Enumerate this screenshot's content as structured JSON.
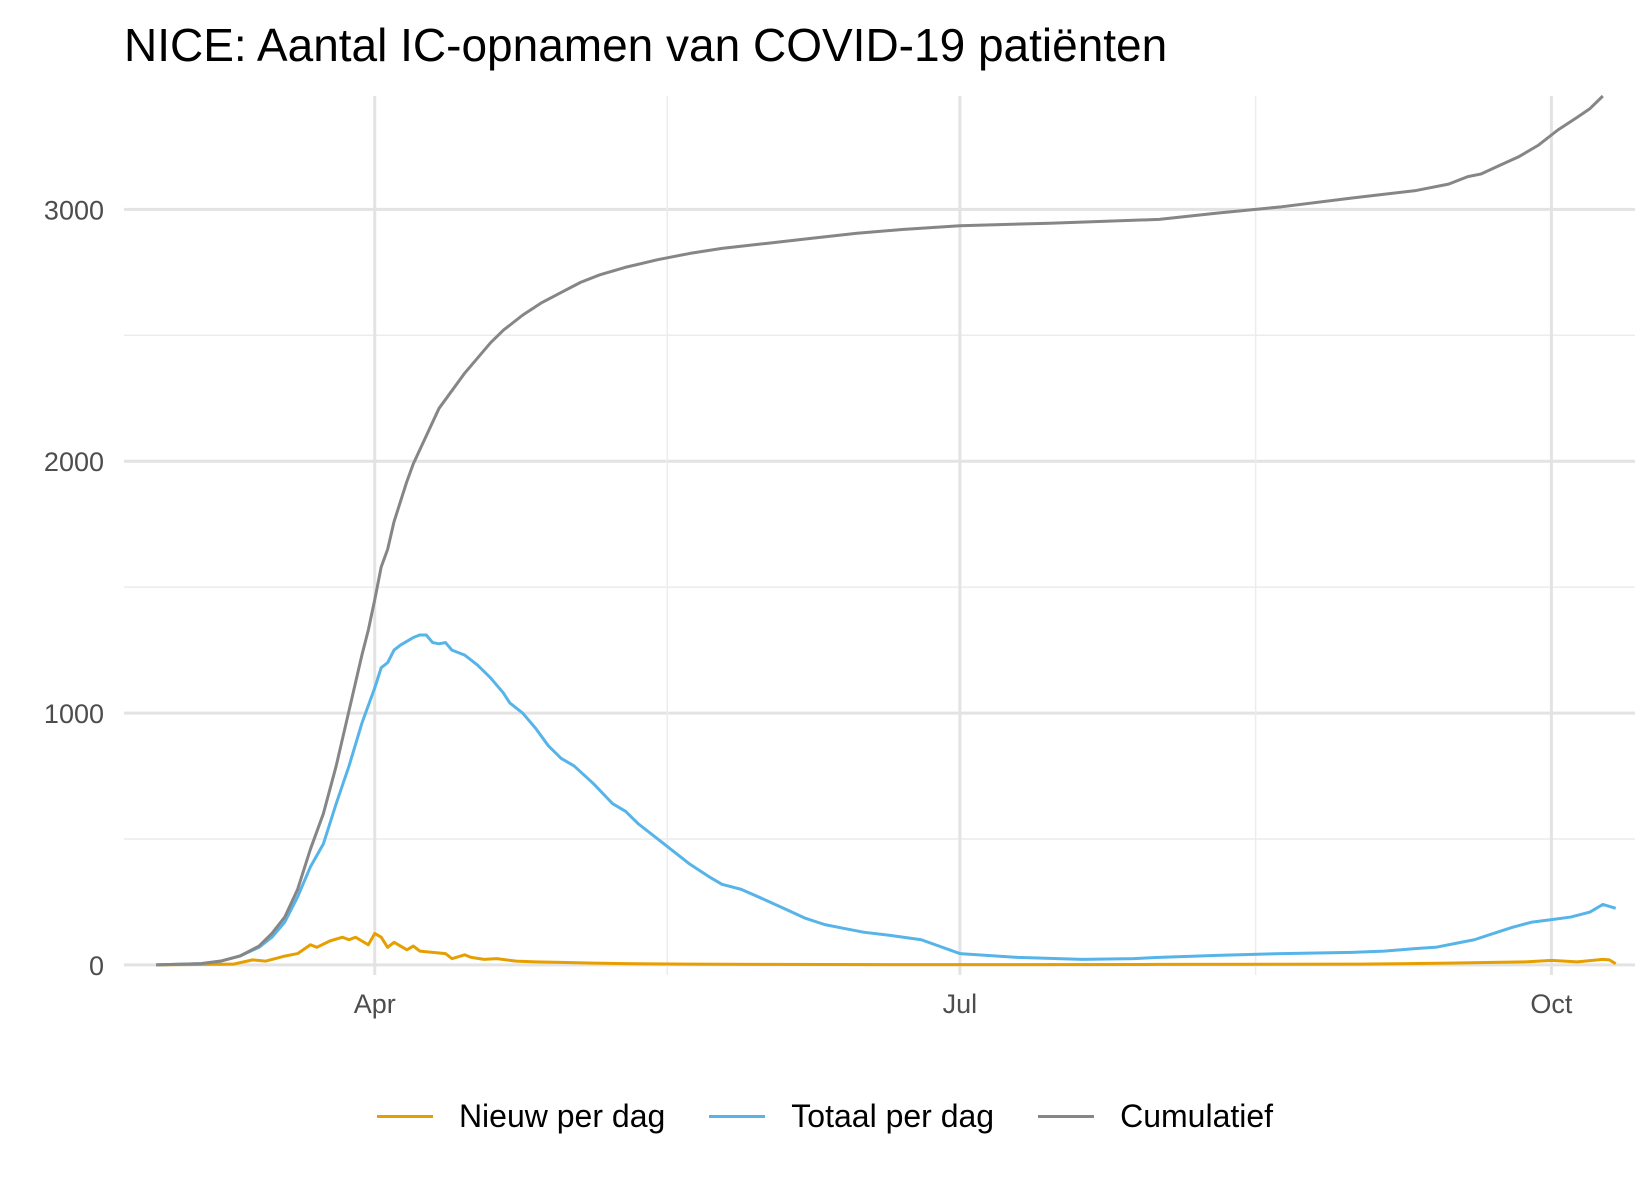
{
  "chart_data": {
    "type": "line",
    "title": "NICE: Aantal IC-opnamen van COVID-19 patiënten",
    "xlabel": "",
    "ylabel": "",
    "x_ticks": [
      "Apr",
      "Jul",
      "Oct"
    ],
    "x_tick_dates": [
      "2020-04-01",
      "2020-07-01",
      "2020-10-01"
    ],
    "x_range": [
      "2020-02-22",
      "2020-10-14"
    ],
    "y_ticks": [
      0,
      1000,
      2000,
      3000
    ],
    "ylim": [
      -40,
      3450
    ],
    "grid": true,
    "legend_position": "bottom",
    "series": [
      {
        "name": "Nieuw per dag",
        "color": "#E69F00",
        "points": [
          [
            "2020-02-27",
            0
          ],
          [
            "2020-03-10",
            3
          ],
          [
            "2020-03-13",
            20
          ],
          [
            "2020-03-15",
            15
          ],
          [
            "2020-03-18",
            35
          ],
          [
            "2020-03-20",
            45
          ],
          [
            "2020-03-22",
            80
          ],
          [
            "2020-03-23",
            70
          ],
          [
            "2020-03-25",
            95
          ],
          [
            "2020-03-27",
            110
          ],
          [
            "2020-03-28",
            100
          ],
          [
            "2020-03-29",
            110
          ],
          [
            "2020-03-30",
            95
          ],
          [
            "2020-03-31",
            80
          ],
          [
            "2020-04-01",
            125
          ],
          [
            "2020-04-02",
            110
          ],
          [
            "2020-04-03",
            70
          ],
          [
            "2020-04-04",
            90
          ],
          [
            "2020-04-05",
            75
          ],
          [
            "2020-04-06",
            60
          ],
          [
            "2020-04-07",
            75
          ],
          [
            "2020-04-08",
            55
          ],
          [
            "2020-04-10",
            50
          ],
          [
            "2020-04-12",
            45
          ],
          [
            "2020-04-13",
            25
          ],
          [
            "2020-04-15",
            40
          ],
          [
            "2020-04-16",
            30
          ],
          [
            "2020-04-18",
            22
          ],
          [
            "2020-04-20",
            25
          ],
          [
            "2020-04-23",
            15
          ],
          [
            "2020-04-26",
            12
          ],
          [
            "2020-04-30",
            10
          ],
          [
            "2020-05-05",
            7
          ],
          [
            "2020-05-10",
            5
          ],
          [
            "2020-05-20",
            3
          ],
          [
            "2020-06-01",
            2
          ],
          [
            "2020-07-01",
            1
          ],
          [
            "2020-08-01",
            2
          ],
          [
            "2020-09-01",
            3
          ],
          [
            "2020-09-15",
            7
          ],
          [
            "2020-09-22",
            10
          ],
          [
            "2020-09-27",
            12
          ],
          [
            "2020-10-01",
            18
          ],
          [
            "2020-10-05",
            12
          ],
          [
            "2020-10-09",
            22
          ],
          [
            "2020-10-10",
            20
          ],
          [
            "2020-10-11",
            5
          ]
        ]
      },
      {
        "name": "Totaal per dag",
        "color": "#56B4E9",
        "points": [
          [
            "2020-02-27",
            0
          ],
          [
            "2020-03-05",
            5
          ],
          [
            "2020-03-08",
            15
          ],
          [
            "2020-03-11",
            35
          ],
          [
            "2020-03-14",
            70
          ],
          [
            "2020-03-16",
            110
          ],
          [
            "2020-03-18",
            170
          ],
          [
            "2020-03-20",
            270
          ],
          [
            "2020-03-22",
            390
          ],
          [
            "2020-03-24",
            480
          ],
          [
            "2020-03-26",
            640
          ],
          [
            "2020-03-28",
            790
          ],
          [
            "2020-03-30",
            960
          ],
          [
            "2020-03-31",
            1030
          ],
          [
            "2020-04-01",
            1100
          ],
          [
            "2020-04-02",
            1180
          ],
          [
            "2020-04-03",
            1200
          ],
          [
            "2020-04-04",
            1250
          ],
          [
            "2020-04-05",
            1270
          ],
          [
            "2020-04-06",
            1285
          ],
          [
            "2020-04-07",
            1300
          ],
          [
            "2020-04-08",
            1310
          ],
          [
            "2020-04-09",
            1310
          ],
          [
            "2020-04-10",
            1280
          ],
          [
            "2020-04-11",
            1275
          ],
          [
            "2020-04-12",
            1280
          ],
          [
            "2020-04-13",
            1250
          ],
          [
            "2020-04-15",
            1230
          ],
          [
            "2020-04-17",
            1190
          ],
          [
            "2020-04-19",
            1140
          ],
          [
            "2020-04-21",
            1080
          ],
          [
            "2020-04-22",
            1040
          ],
          [
            "2020-04-24",
            1000
          ],
          [
            "2020-04-26",
            940
          ],
          [
            "2020-04-28",
            870
          ],
          [
            "2020-04-30",
            820
          ],
          [
            "2020-05-02",
            790
          ],
          [
            "2020-05-05",
            720
          ],
          [
            "2020-05-08",
            640
          ],
          [
            "2020-05-10",
            610
          ],
          [
            "2020-05-12",
            560
          ],
          [
            "2020-05-15",
            500
          ],
          [
            "2020-05-18",
            440
          ],
          [
            "2020-05-20",
            400
          ],
          [
            "2020-05-23",
            350
          ],
          [
            "2020-05-25",
            320
          ],
          [
            "2020-05-28",
            300
          ],
          [
            "2020-06-01",
            255
          ],
          [
            "2020-06-04",
            220
          ],
          [
            "2020-06-07",
            185
          ],
          [
            "2020-06-10",
            160
          ],
          [
            "2020-06-13",
            145
          ],
          [
            "2020-06-16",
            130
          ],
          [
            "2020-06-20",
            118
          ],
          [
            "2020-06-25",
            100
          ],
          [
            "2020-07-01",
            45
          ],
          [
            "2020-07-10",
            30
          ],
          [
            "2020-07-20",
            22
          ],
          [
            "2020-07-28",
            25
          ],
          [
            "2020-08-01",
            30
          ],
          [
            "2020-08-10",
            38
          ],
          [
            "2020-08-20",
            45
          ],
          [
            "2020-08-31",
            50
          ],
          [
            "2020-09-05",
            55
          ],
          [
            "2020-09-10",
            65
          ],
          [
            "2020-09-13",
            70
          ],
          [
            "2020-09-16",
            85
          ],
          [
            "2020-09-19",
            100
          ],
          [
            "2020-09-22",
            125
          ],
          [
            "2020-09-25",
            150
          ],
          [
            "2020-09-28",
            170
          ],
          [
            "2020-10-01",
            180
          ],
          [
            "2020-10-04",
            190
          ],
          [
            "2020-10-07",
            210
          ],
          [
            "2020-10-09",
            240
          ],
          [
            "2020-10-11",
            225
          ]
        ]
      },
      {
        "name": "Cumulatief",
        "color": "#868686",
        "points": [
          [
            "2020-02-27",
            0
          ],
          [
            "2020-03-05",
            5
          ],
          [
            "2020-03-08",
            15
          ],
          [
            "2020-03-11",
            35
          ],
          [
            "2020-03-14",
            75
          ],
          [
            "2020-03-16",
            125
          ],
          [
            "2020-03-18",
            190
          ],
          [
            "2020-03-20",
            300
          ],
          [
            "2020-03-22",
            460
          ],
          [
            "2020-03-24",
            600
          ],
          [
            "2020-03-26",
            790
          ],
          [
            "2020-03-28",
            1010
          ],
          [
            "2020-03-30",
            1230
          ],
          [
            "2020-03-31",
            1330
          ],
          [
            "2020-04-01",
            1450
          ],
          [
            "2020-04-02",
            1580
          ],
          [
            "2020-04-03",
            1650
          ],
          [
            "2020-04-04",
            1760
          ],
          [
            "2020-04-05",
            1840
          ],
          [
            "2020-04-06",
            1920
          ],
          [
            "2020-04-07",
            1990
          ],
          [
            "2020-04-09",
            2100
          ],
          [
            "2020-04-11",
            2210
          ],
          [
            "2020-04-13",
            2280
          ],
          [
            "2020-04-15",
            2350
          ],
          [
            "2020-04-17",
            2410
          ],
          [
            "2020-04-19",
            2470
          ],
          [
            "2020-04-21",
            2520
          ],
          [
            "2020-04-24",
            2580
          ],
          [
            "2020-04-27",
            2630
          ],
          [
            "2020-04-30",
            2670
          ],
          [
            "2020-05-03",
            2710
          ],
          [
            "2020-05-06",
            2740
          ],
          [
            "2020-05-10",
            2770
          ],
          [
            "2020-05-15",
            2800
          ],
          [
            "2020-05-20",
            2825
          ],
          [
            "2020-05-25",
            2845
          ],
          [
            "2020-06-01",
            2865
          ],
          [
            "2020-06-08",
            2885
          ],
          [
            "2020-06-15",
            2905
          ],
          [
            "2020-06-22",
            2920
          ],
          [
            "2020-07-01",
            2935
          ],
          [
            "2020-07-15",
            2945
          ],
          [
            "2020-08-01",
            2960
          ],
          [
            "2020-08-10",
            2985
          ],
          [
            "2020-08-20",
            3010
          ],
          [
            "2020-08-31",
            3045
          ],
          [
            "2020-09-10",
            3075
          ],
          [
            "2020-09-15",
            3100
          ],
          [
            "2020-09-18",
            3130
          ],
          [
            "2020-09-20",
            3140
          ],
          [
            "2020-09-23",
            3175
          ],
          [
            "2020-09-26",
            3210
          ],
          [
            "2020-09-29",
            3255
          ],
          [
            "2020-10-02",
            3315
          ],
          [
            "2020-10-05",
            3365
          ],
          [
            "2020-10-07",
            3400
          ],
          [
            "2020-10-09",
            3450
          ]
        ]
      }
    ]
  }
}
